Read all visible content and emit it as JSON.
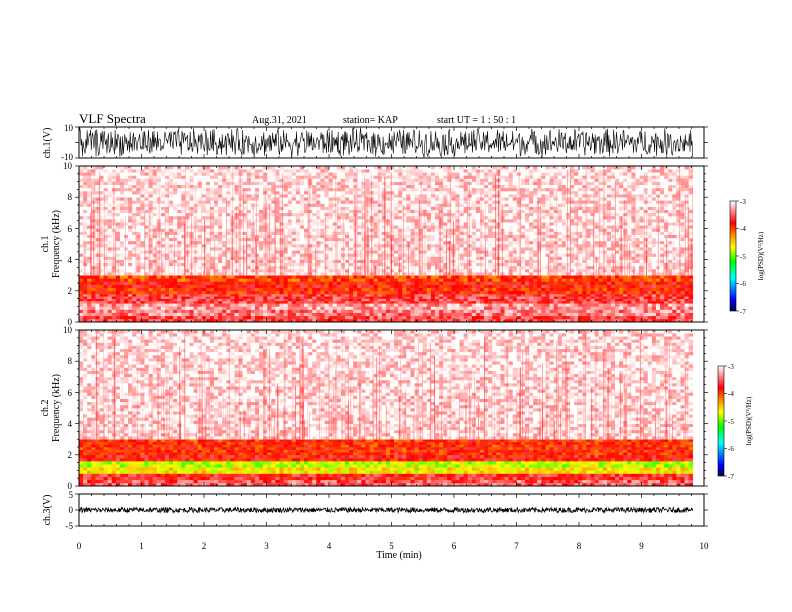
{
  "header": {
    "title": "VLF Spectra",
    "date": "Aug.31, 2021",
    "station": "station= KAP",
    "start": "start  UT =   1 : 50 : 1"
  },
  "chart_data": [
    {
      "type": "line",
      "panel": "ch1-waveform",
      "ylabel": "ch.1(V)",
      "ylim": [
        -10,
        10
      ],
      "ytick_labels": [
        "10",
        "-10"
      ],
      "xlim": [
        0,
        10
      ],
      "data_extent": [
        0,
        9.82
      ],
      "description_values": {
        "amplitude_range": [
          -10,
          10
        ],
        "dense_oscillation": true
      },
      "color": "#000000"
    },
    {
      "type": "heatmap",
      "panel": "ch1-spectrogram",
      "ylabel": "ch.1\nFrequency (kHz)",
      "ylabel_lines": [
        "ch.1",
        "Frequency (kHz)"
      ],
      "ylim": [
        0,
        10
      ],
      "ytick_labels": [
        "0",
        "2",
        "4",
        "6",
        "8",
        "10"
      ],
      "xlim": [
        0,
        10
      ],
      "data_extent": [
        0,
        9.82
      ],
      "bands": [
        {
          "from": 0,
          "to": 0.4,
          "level": -3.6
        },
        {
          "from": 0.4,
          "to": 0.8,
          "level": -3.4
        },
        {
          "from": 0.8,
          "to": 1.2,
          "level": -3.3
        },
        {
          "from": 1.2,
          "to": 1.8,
          "level": -3.6
        },
        {
          "from": 1.8,
          "to": 2.2,
          "level": -3.9
        },
        {
          "from": 2.2,
          "to": 2.6,
          "level": -3.8
        },
        {
          "from": 2.6,
          "to": 3.0,
          "level": -4.0
        },
        {
          "from": 3.0,
          "to": 10.0,
          "level": -3.1
        }
      ],
      "colorbar": {
        "label": "log(PSD)(V²/Hz)",
        "range": [
          -7,
          -3
        ],
        "tick_labels": [
          "-3",
          "-4",
          "-5",
          "-6",
          "-7"
        ]
      }
    },
    {
      "type": "heatmap",
      "panel": "ch2-spectrogram",
      "ylabel_lines": [
        "ch.2",
        "Frequency (kHz)"
      ],
      "ylim": [
        0,
        10
      ],
      "ytick_labels": [
        "0",
        "2",
        "4",
        "6",
        "8",
        "10"
      ],
      "xlim": [
        0,
        10
      ],
      "data_extent": [
        0,
        9.82
      ],
      "bands": [
        {
          "from": 0,
          "to": 0.4,
          "level": -3.5
        },
        {
          "from": 0.4,
          "to": 0.8,
          "level": -3.7
        },
        {
          "from": 0.8,
          "to": 1.2,
          "level": -4.6
        },
        {
          "from": 1.2,
          "to": 1.6,
          "level": -4.8
        },
        {
          "from": 1.6,
          "to": 2.0,
          "level": -3.8
        },
        {
          "from": 2.0,
          "to": 3.0,
          "level": -3.9
        },
        {
          "from": 3.0,
          "to": 10.0,
          "level": -3.1
        }
      ],
      "colorbar": {
        "label": "log(PSD)(V²/Hz)",
        "range": [
          -7,
          -3
        ],
        "tick_labels": [
          "-3",
          "-4",
          "-5",
          "-6",
          "-7"
        ]
      }
    },
    {
      "type": "line",
      "panel": "ch3-waveform",
      "ylabel": "ch.3(V)",
      "ylim": [
        -5,
        5
      ],
      "ytick_labels": [
        "5",
        "0",
        "-5"
      ],
      "xlim": [
        0,
        10
      ],
      "data_extent": [
        0,
        9.82
      ],
      "description_values": {
        "amplitude_range": [
          -1,
          1
        ],
        "center": 0
      },
      "color": "#000000"
    }
  ],
  "xaxis": {
    "label": "Time (min)",
    "ticks": [
      0,
      1,
      2,
      3,
      4,
      5,
      6,
      7,
      8,
      9,
      10
    ],
    "tick_labels": [
      "0",
      "1",
      "2",
      "3",
      "4",
      "5",
      "6",
      "7",
      "8",
      "9",
      "10"
    ]
  },
  "colors": {
    "colorscale": [
      "#000080",
      "#0000ff",
      "#00ffff",
      "#00ff00",
      "#ffff00",
      "#ff8000",
      "#ff0000",
      "#ffffff"
    ]
  }
}
